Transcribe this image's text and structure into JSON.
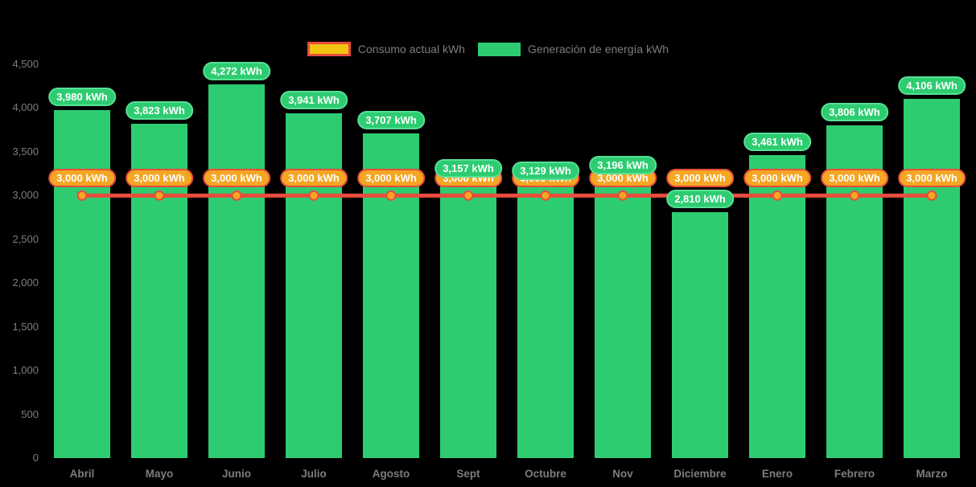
{
  "background_color": "#000000",
  "legend": {
    "text_color": "#7d7d7d",
    "items": [
      {
        "label": "Consumo actual kWh",
        "swatch_fill": "#f1c40f",
        "swatch_border": "#e74c3c"
      },
      {
        "label": "Generación de energía kWh",
        "swatch_fill": "#2ecc71",
        "swatch_border": "#2ecc71"
      }
    ]
  },
  "chart_data": {
    "type": "bar",
    "title": "",
    "xlabel": "",
    "ylabel": "",
    "ylim": [
      0,
      4500
    ],
    "grid": false,
    "legend_position": "top-center",
    "axis_text_color": "#7d7d7d",
    "categories": [
      "Abril",
      "Mayo",
      "Junio",
      "Julio",
      "Agosto",
      "Sept",
      "Octubre",
      "Nov",
      "Diciembre",
      "Enero",
      "Febrero",
      "Marzo"
    ],
    "y_ticks": [
      {
        "value": 0,
        "label": "0"
      },
      {
        "value": 500,
        "label": "500"
      },
      {
        "value": 1000,
        "label": "1,000"
      },
      {
        "value": 1500,
        "label": "1,500"
      },
      {
        "value": 2000,
        "label": "2,000"
      },
      {
        "value": 2500,
        "label": "2,500"
      },
      {
        "value": 3000,
        "label": "3,000"
      },
      {
        "value": 3500,
        "label": "3,500"
      },
      {
        "value": 4000,
        "label": "4,000"
      },
      {
        "value": 4500,
        "label": "4,500"
      }
    ],
    "series": [
      {
        "name": "Generación de energía kWh",
        "type": "bar",
        "color": "#2ecc71",
        "label_bg": "#2ecc71",
        "label_border": "#57e095",
        "label_text_color": "#ffffff",
        "values": [
          3980,
          3823,
          4272,
          3941,
          3707,
          3157,
          3129,
          3196,
          2810,
          3461,
          3806,
          4106
        ],
        "labels": [
          "3,980 kWh",
          "3,823 kWh",
          "4,272 kWh",
          "3,941 kWh",
          "3,707 kWh",
          "3,157 kWh",
          "3,129 kWh",
          "3,196 kWh",
          "2,810 kWh",
          "3,461 kWh",
          "3,806 kWh",
          "4,106 kWh"
        ]
      },
      {
        "name": "Consumo actual kWh",
        "type": "line",
        "color": "#e84c3c",
        "marker_fill": "#f5a623",
        "marker_border": "#e74c3c",
        "label_bg": "#f5a623",
        "label_border": "#e74c3c",
        "label_text_color": "#ffffff",
        "values": [
          3000,
          3000,
          3000,
          3000,
          3000,
          3000,
          3000,
          3000,
          3000,
          3000,
          3000,
          3000
        ],
        "labels": [
          "3,000 kWh",
          "3,000 kWh",
          "3,000 kWh",
          "3,000 kWh",
          "3,000 kWh",
          "3,000 kWh",
          "3,000 kWh",
          "3,000 kWh",
          "3,000 kWh",
          "3,000 kWh",
          "3,000 kWh",
          "3,000 kWh"
        ]
      }
    ]
  }
}
